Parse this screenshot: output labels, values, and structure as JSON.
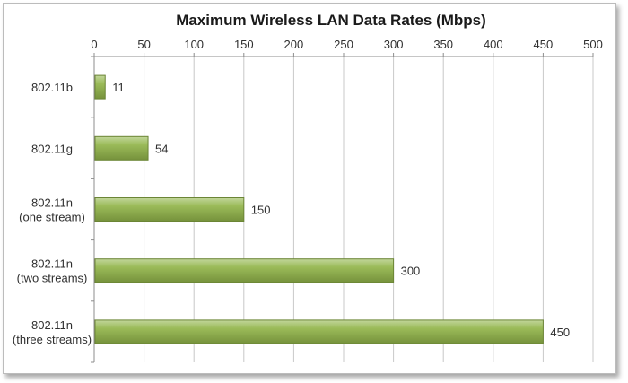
{
  "chart_data": {
    "type": "bar",
    "orientation": "horizontal",
    "title": "Maximum Wireless LAN Data Rates (Mbps)",
    "xlabel": "",
    "ylabel": "",
    "xlim": [
      0,
      500
    ],
    "x_ticks": [
      0,
      50,
      100,
      150,
      200,
      250,
      300,
      350,
      400,
      450,
      500
    ],
    "x_axis_position": "top",
    "grid": true,
    "legend": "none",
    "bar_color": "#8aab54",
    "categories": [
      [
        "802.11b"
      ],
      [
        "802.11g"
      ],
      [
        "802.11n",
        "(one stream)"
      ],
      [
        "802.11n",
        "(two streams)"
      ],
      [
        "802.11n",
        "(three streams)"
      ]
    ],
    "values": [
      11,
      54,
      150,
      300,
      450
    ],
    "data_labels": [
      "11",
      "54",
      "150",
      "300",
      "450"
    ]
  }
}
